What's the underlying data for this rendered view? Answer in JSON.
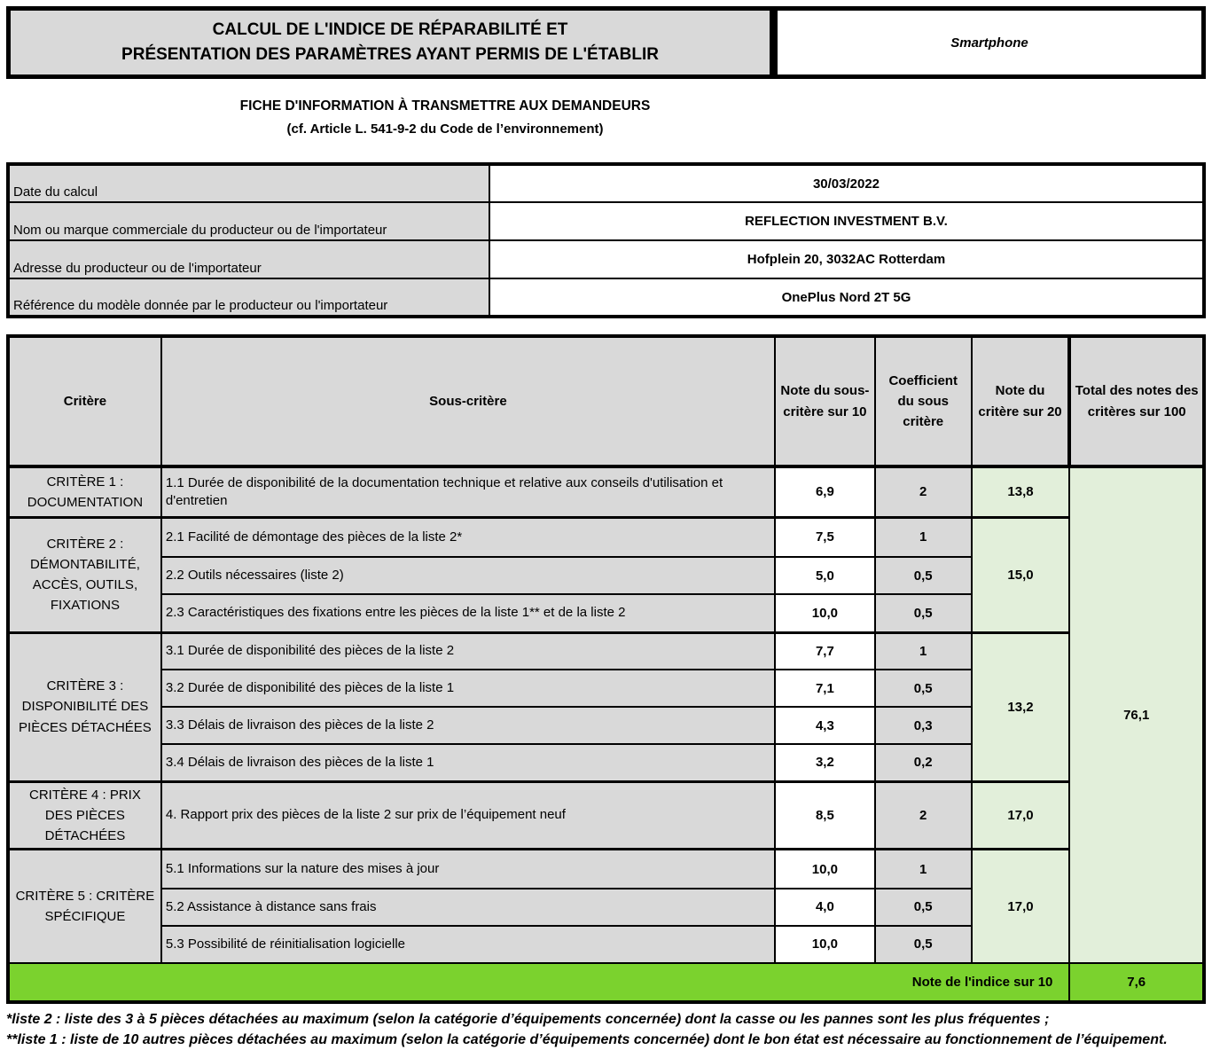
{
  "header": {
    "title_line1": "CALCUL DE L'INDICE DE RÉPARABILITÉ ET",
    "title_line2": "PRÉSENTATION DES PARAMÈTRES AYANT PERMIS DE L'ÉTABLIR",
    "product": "Smartphone"
  },
  "subtitle": {
    "line1": "FICHE D'INFORMATION À TRANSMETTRE AUX DEMANDEURS",
    "line2": "(cf. Article L. 541-9-2 du Code de l’environnement)"
  },
  "info": {
    "rows": [
      {
        "label": "Date du calcul",
        "value": "30/03/2022"
      },
      {
        "label": "Nom ou marque commerciale du producteur ou de l'importateur",
        "value": "REFLECTION INVESTMENT B.V."
      },
      {
        "label": "Adresse du producteur ou de l'importateur",
        "value": "Hofplein 20, 3032AC Rotterdam"
      },
      {
        "label": "Référence du modèle donnée par le producteur ou l'importateur",
        "value": "OnePlus Nord 2T 5G"
      }
    ]
  },
  "table": {
    "headers": {
      "criterion": "Critère",
      "sub_criterion": "Sous-critère",
      "sub_score": "Note du sous-critère sur 10",
      "coefficient": "Coefficient du sous critère",
      "criterion_score": "Note du critère sur 20",
      "total": "Total des notes des critères sur 100"
    },
    "groups": [
      {
        "criterion": "CRITÈRE 1 : DOCUMENTATION",
        "score20": "13,8",
        "rows": [
          {
            "label": "1.1 Durée de disponibilité de la documentation technique et relative aux conseils d'utilisation et d'entretien",
            "score": "6,9",
            "coef": "2"
          }
        ]
      },
      {
        "criterion": "CRITÈRE 2 : DÉMONTABILITÉ, ACCÈS, OUTILS, FIXATIONS",
        "score20": "15,0",
        "rows": [
          {
            "label": "2.1 Facilité de démontage des pièces de la liste 2*",
            "score": "7,5",
            "coef": "1"
          },
          {
            "label": "2.2 Outils nécessaires (liste 2)",
            "score": "5,0",
            "coef": "0,5"
          },
          {
            "label": "2.3 Caractéristiques des fixations entre les pièces de la liste 1** et de la liste 2",
            "score": "10,0",
            "coef": "0,5"
          }
        ]
      },
      {
        "criterion": "CRITÈRE 3 : DISPONIBILITÉ DES PIÈCES DÉTACHÉES",
        "score20": "13,2",
        "rows": [
          {
            "label": "3.1 Durée de disponibilité des pièces de la liste 2",
            "score": "7,7",
            "coef": "1"
          },
          {
            "label": "3.2 Durée de disponibilité des pièces de la liste 1",
            "score": "7,1",
            "coef": "0,5"
          },
          {
            "label": "3.3 Délais de livraison des pièces de la liste 2",
            "score": "4,3",
            "coef": "0,3"
          },
          {
            "label": "3.4 Délais de livraison des pièces de la liste 1",
            "score": "3,2",
            "coef": "0,2"
          }
        ]
      },
      {
        "criterion": "CRITÈRE 4 : PRIX DES PIÈCES DÉTACHÉES",
        "score20": "17,0",
        "rows": [
          {
            "label": "4. Rapport prix des pièces de la liste 2 sur prix de l’équipement neuf",
            "score": "8,5",
            "coef": "2"
          }
        ]
      },
      {
        "criterion": "CRITÈRE 5 : CRITÈRE SPÉCIFIQUE",
        "score20": "17,0",
        "rows": [
          {
            "label": "5.1 Informations sur la nature des mises à jour",
            "score": "10,0",
            "coef": "1"
          },
          {
            "label": "5.2 Assistance à distance sans frais",
            "score": "4,0",
            "coef": "0,5"
          },
          {
            "label": "5.3 Possibilité de réinitialisation logicielle",
            "score": "10,0",
            "coef": "0,5"
          }
        ]
      }
    ],
    "total100": "76,1",
    "final": {
      "label": "Note de l'indice sur 10",
      "value": "7,6"
    }
  },
  "footnotes": [
    "*liste 2 : liste des 3 à 5 pièces détachées au maximum (selon la catégorie d’équipements concernée) dont la casse ou les pannes sont les plus fréquentes ;",
    "**liste 1 : liste de 10 autres pièces détachées au maximum (selon la catégorie d’équipements concernée) dont le bon état est nécessaire au fonctionnement de l’équipement."
  ],
  "colors": {
    "gray": "#d9d9d9",
    "light_green": "#e2efda",
    "bright_green": "#7bd22e"
  }
}
